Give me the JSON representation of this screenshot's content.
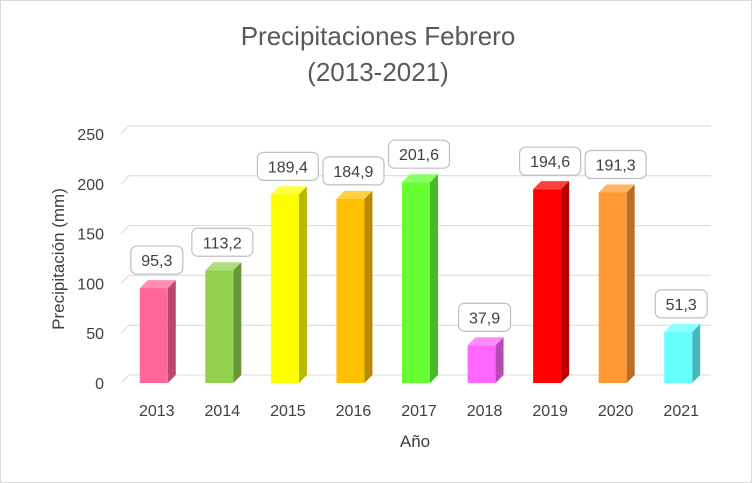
{
  "chart_data": {
    "type": "bar",
    "title": [
      "Precipitaciones Febrero",
      "(2013-2021)"
    ],
    "xlabel": "Año",
    "ylabel": "Precipitación (mm)",
    "ylim": [
      0,
      250
    ],
    "yticks": [
      0,
      50,
      100,
      150,
      200,
      250
    ],
    "grid": true,
    "legend": "none",
    "categories": [
      "2013",
      "2014",
      "2015",
      "2016",
      "2017",
      "2018",
      "2019",
      "2020",
      "2021"
    ],
    "values": [
      95.3,
      113.2,
      189.4,
      184.9,
      201.6,
      37.9,
      194.6,
      191.3,
      51.3
    ],
    "data_labels": [
      "95,3",
      "113,2",
      "189,4",
      "184,9",
      "201,6",
      "37,9",
      "194,6",
      "191,3",
      "51,3"
    ],
    "colors": [
      "#ff6699",
      "#92d050",
      "#ffff00",
      "#ffc000",
      "#66ff33",
      "#ff66ff",
      "#ff0000",
      "#ff9933",
      "#66ffff"
    ]
  }
}
